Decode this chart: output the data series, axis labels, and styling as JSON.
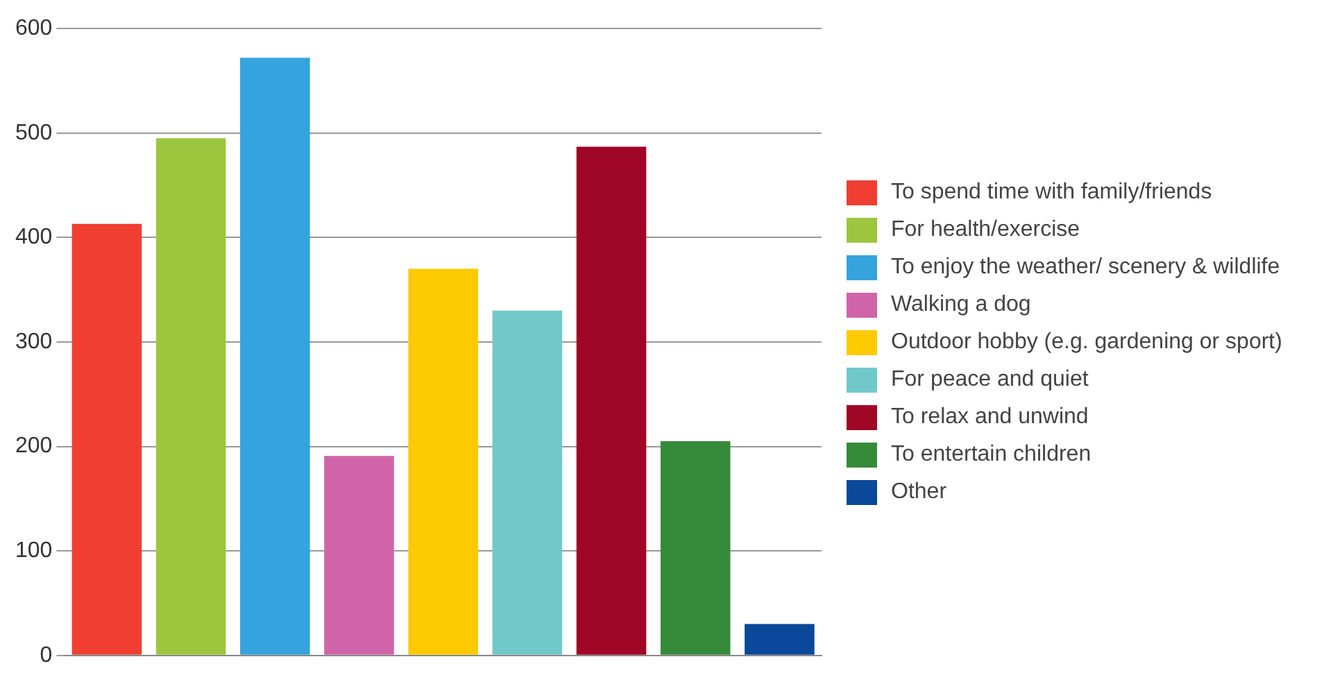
{
  "chart_data": {
    "type": "bar",
    "categories": [
      null
    ],
    "series": [
      {
        "name": "To spend time with family/friends",
        "color": "#f03e32",
        "values": [
          413
        ]
      },
      {
        "name": "For health/exercise",
        "color": "#9dc63f",
        "values": [
          495
        ]
      },
      {
        "name": "To enjoy the weather/ scenery & wildlife",
        "color": "#35a3de",
        "values": [
          572
        ]
      },
      {
        "name": "Walking a dog",
        "color": "#d064a9",
        "values": [
          191
        ]
      },
      {
        "name": "Outdoor hobby (e.g. gardening or sport)",
        "color": "#fdc900",
        "values": [
          370
        ]
      },
      {
        "name": "For peace and quiet",
        "color": "#70c9c8",
        "values": [
          330
        ]
      },
      {
        "name": "To relax and unwind",
        "color": "#a00625",
        "values": [
          487
        ]
      },
      {
        "name": "To entertain children",
        "color": "#358b3a",
        "values": [
          205
        ]
      },
      {
        "name": "Other",
        "color": "#0a4899",
        "values": [
          30
        ]
      }
    ],
    "ylim": [
      0,
      600
    ],
    "yticks": [
      0,
      100,
      200,
      300,
      400,
      500,
      600
    ],
    "grid": "y",
    "legend": "right"
  }
}
